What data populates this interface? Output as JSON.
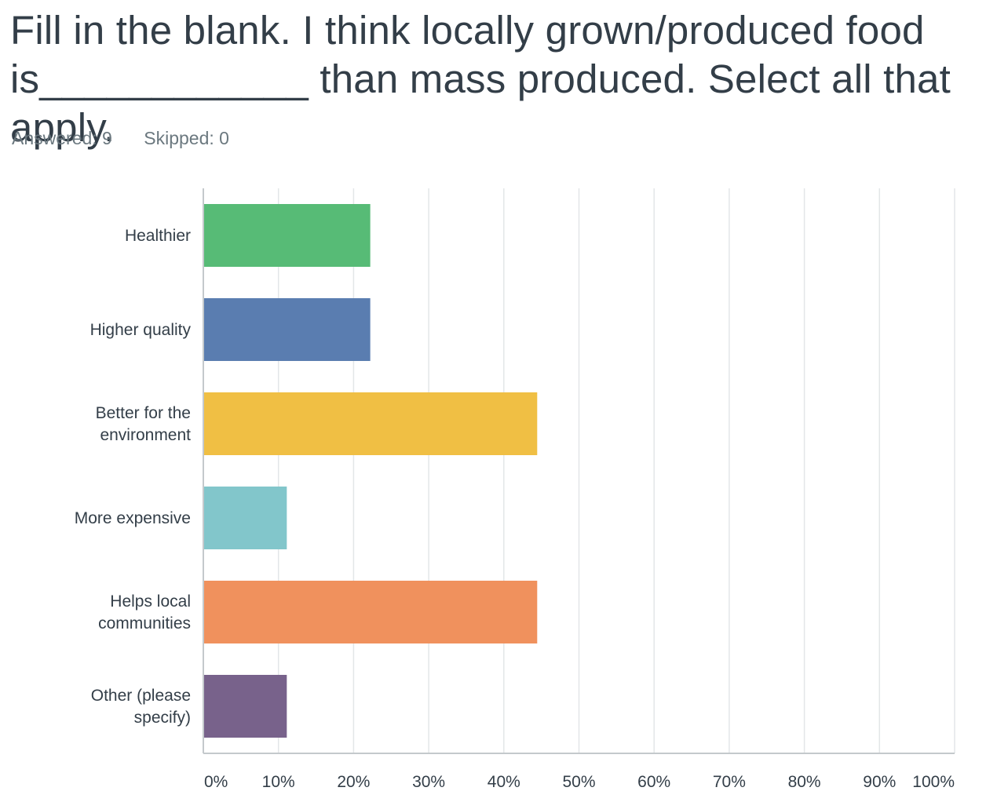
{
  "question": {
    "title": "Fill in the blank. I think locally grown/produced food is____________ than mass produced. Select all that apply."
  },
  "stats": {
    "answered": "Answered: 9",
    "skipped": "Skipped: 0"
  },
  "chart_data": {
    "type": "bar",
    "orientation": "horizontal",
    "title": "Fill in the blank. I think locally grown/produced food is____________ than mass produced. Select all that apply.",
    "xlabel": "",
    "ylabel": "",
    "xlim": [
      0,
      100
    ],
    "grid": true,
    "categories": [
      [
        "Healthier"
      ],
      [
        "Higher quality"
      ],
      [
        "Better for the",
        "environment"
      ],
      [
        "More expensive"
      ],
      [
        "Helps local",
        "communities"
      ],
      [
        "Other (please",
        "specify)"
      ]
    ],
    "values": [
      22.22,
      22.22,
      44.44,
      11.11,
      44.44,
      11.11
    ],
    "colors": [
      "#57bb76",
      "#5a7db0",
      "#f0bf44",
      "#82c6cb",
      "#f0915d",
      "#78628b"
    ],
    "x_ticks": [
      "0%",
      "10%",
      "20%",
      "30%",
      "40%",
      "50%",
      "60%",
      "70%",
      "80%",
      "90%",
      "100%"
    ]
  }
}
